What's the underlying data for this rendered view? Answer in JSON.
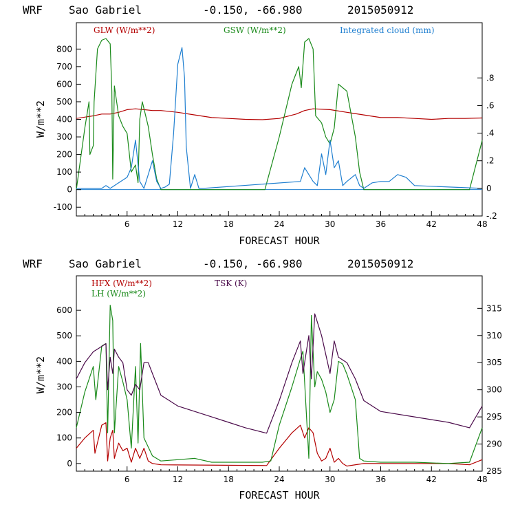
{
  "chart_data": [
    {
      "type": "line",
      "title": {
        "model": "WRF",
        "station": "Sao Gabriel",
        "coords": "-0.150, -66.980",
        "init": "2015050912"
      },
      "xlabel": "FORECAST HOUR",
      "ylabel": "W/m**2",
      "xlim": [
        0,
        48
      ],
      "xticks": [
        "6",
        "12",
        "18",
        "24",
        "30",
        "36",
        "42",
        "48"
      ],
      "xtick_values": [
        6,
        12,
        18,
        24,
        30,
        36,
        42,
        48
      ],
      "ylim": [
        -150,
        950
      ],
      "yticks": [
        "-100",
        "0",
        "100",
        "200",
        "300",
        "400",
        "500",
        "600",
        "700",
        "800"
      ],
      "ytick_values": [
        -100,
        0,
        100,
        200,
        300,
        400,
        500,
        600,
        700,
        800
      ],
      "y2lim": [
        -0.2,
        1.2
      ],
      "y2ticks": [
        "-.2",
        "0",
        ".2",
        ".4",
        ".6",
        ".8"
      ],
      "y2tick_values": [
        -0.2,
        0,
        0.2,
        0.4,
        0.6,
        0.8
      ],
      "series": [
        {
          "name": "GLW (W/m**2)",
          "color": "#b40000",
          "axis": "left",
          "x": [
            0,
            2,
            3,
            4,
            5,
            6,
            7,
            8,
            9,
            10,
            12,
            14,
            16,
            18,
            20,
            22,
            24,
            26,
            27,
            28,
            30,
            32,
            34,
            36,
            38,
            40,
            42,
            44,
            46,
            48
          ],
          "y": [
            405,
            420,
            430,
            430,
            440,
            455,
            460,
            455,
            450,
            450,
            440,
            425,
            410,
            405,
            400,
            398,
            405,
            430,
            450,
            460,
            455,
            440,
            425,
            410,
            410,
            405,
            400,
            405,
            405,
            408
          ]
        },
        {
          "name": "GSW (W/m**2)",
          "color": "#1a8a1a",
          "axis": "left",
          "x": [
            0,
            1.0,
            1.5,
            1.6,
            2.0,
            2.1,
            2.5,
            3.0,
            3.5,
            4.0,
            4.2,
            4.3,
            4.5,
            5.0,
            5.5,
            6.0,
            6.5,
            7.0,
            7.3,
            7.5,
            7.8,
            8.5,
            9.0,
            9.5,
            10.0,
            22.3,
            24.0,
            25.5,
            26.3,
            26.6,
            27.0,
            27.5,
            28.0,
            28.3,
            29.0,
            29.5,
            30.0,
            30.5,
            31.0,
            31.5,
            32.0,
            33.0,
            33.5,
            34.0,
            46.5,
            48.0
          ],
          "y": [
            0,
            350,
            500,
            200,
            250,
            500,
            800,
            850,
            860,
            830,
            560,
            60,
            590,
            420,
            360,
            320,
            100,
            140,
            40,
            400,
            500,
            360,
            200,
            60,
            0,
            0,
            300,
            600,
            700,
            580,
            840,
            860,
            800,
            420,
            380,
            300,
            260,
            350,
            600,
            580,
            560,
            300,
            100,
            0,
            0,
            280
          ]
        },
        {
          "name": "Integrated cloud (mm)",
          "color": "#1f7fd0",
          "axis": "right",
          "x": [
            0,
            3.0,
            3.5,
            4.0,
            5.0,
            6.0,
            6.5,
            7.0,
            7.5,
            8.0,
            8.5,
            9.0,
            9.5,
            10.0,
            10.5,
            11.0,
            11.5,
            12.0,
            12.5,
            12.8,
            13.0,
            13.5,
            14.0,
            14.5,
            15.0,
            26.5,
            27.0,
            27.5,
            28.0,
            28.5,
            29.0,
            29.5,
            30.0,
            30.5,
            31.0,
            31.5,
            32.0,
            33.0,
            33.5,
            34.0,
            35.0,
            36.0,
            37.0,
            38.0,
            39.0,
            40.0,
            48.0
          ],
          "y": [
            0,
            0,
            0.02,
            0,
            0.04,
            0.08,
            0.15,
            0.35,
            0.05,
            0,
            0.1,
            0.2,
            0.05,
            0,
            0.01,
            0.03,
            0.4,
            0.9,
            1.02,
            0.8,
            0.3,
            0,
            0.1,
            0,
            0,
            0.05,
            0.15,
            0.1,
            0.05,
            0.02,
            0.25,
            0.1,
            0.35,
            0.15,
            0.2,
            0.02,
            0.05,
            0.1,
            0.02,
            0,
            0.04,
            0.05,
            0.05,
            0.1,
            0.08,
            0.02,
            0
          ]
        }
      ]
    },
    {
      "type": "line",
      "title": {
        "model": "WRF",
        "station": "Sao Gabriel",
        "coords": "-0.150, -66.980",
        "init": "2015050912"
      },
      "xlabel": "FORECAST HOUR",
      "ylabel": "W/m**2",
      "xlim": [
        0,
        48
      ],
      "xticks": [
        "6",
        "12",
        "18",
        "24",
        "30",
        "36",
        "42",
        "48"
      ],
      "xtick_values": [
        6,
        12,
        18,
        24,
        30,
        36,
        42,
        48
      ],
      "ylim": [
        -30,
        735
      ],
      "yticks": [
        "0",
        "100",
        "200",
        "300",
        "400",
        "500",
        "600"
      ],
      "ytick_values": [
        0,
        100,
        200,
        300,
        400,
        500,
        600
      ],
      "y2lim": [
        285,
        321
      ],
      "y2ticks": [
        "285",
        "290",
        "295",
        "300",
        "305",
        "310",
        "315"
      ],
      "y2tick_values": [
        285,
        290,
        295,
        300,
        305,
        310,
        315
      ],
      "series": [
        {
          "name": "HFX (W/m**2)",
          "color": "#b40000",
          "axis": "left",
          "x": [
            0,
            1.0,
            2.0,
            2.2,
            3.0,
            3.5,
            3.7,
            4.0,
            4.3,
            4.5,
            5.0,
            5.5,
            6.0,
            6.5,
            7.0,
            7.5,
            8.0,
            8.5,
            9.0,
            10.0,
            22.5,
            24.0,
            25.5,
            26.5,
            27.0,
            27.5,
            28.0,
            28.5,
            29.0,
            29.5,
            30.0,
            30.5,
            31.0,
            31.5,
            32.0,
            34.0,
            36.0,
            38.0,
            40.0,
            42.0,
            44.0,
            46.5,
            48.0
          ],
          "y": [
            60,
            100,
            130,
            40,
            150,
            160,
            10,
            100,
            130,
            20,
            80,
            50,
            60,
            5,
            60,
            20,
            60,
            10,
            0,
            -5,
            -8,
            60,
            120,
            150,
            100,
            140,
            120,
            40,
            10,
            20,
            60,
            5,
            20,
            0,
            -10,
            0,
            0,
            0,
            0,
            0,
            0,
            -5,
            15
          ]
        },
        {
          "name": "LH (W/m**2)",
          "color": "#1a8a1a",
          "axis": "left",
          "x": [
            0,
            1.0,
            2.0,
            2.3,
            3.0,
            3.5,
            3.7,
            4.0,
            4.3,
            4.5,
            5.0,
            5.5,
            6.0,
            6.5,
            7.0,
            7.3,
            7.6,
            8.0,
            9.0,
            10.0,
            12.0,
            14.0,
            16.0,
            18.0,
            20.0,
            22.0,
            23.0,
            24.0,
            25.5,
            26.5,
            26.8,
            27.5,
            27.8,
            28.2,
            28.5,
            29.0,
            29.5,
            30.0,
            30.5,
            31.0,
            31.5,
            32.0,
            33.0,
            33.5,
            34.0,
            36.0,
            40.0,
            44.0,
            46.5,
            48.0
          ],
          "y": [
            140,
            280,
            380,
            250,
            460,
            470,
            120,
            620,
            560,
            120,
            380,
            320,
            250,
            60,
            380,
            80,
            470,
            100,
            30,
            10,
            15,
            20,
            5,
            5,
            5,
            5,
            10,
            150,
            300,
            410,
            440,
            20,
            580,
            300,
            360,
            330,
            280,
            200,
            250,
            400,
            390,
            350,
            250,
            20,
            10,
            5,
            5,
            0,
            5,
            140
          ]
        },
        {
          "name": "TSK (K)",
          "color": "#4a0a4a",
          "axis": "right",
          "x": [
            0,
            1.0,
            2.0,
            3.0,
            3.5,
            3.7,
            4.0,
            4.3,
            4.5,
            5.0,
            5.5,
            6.0,
            6.5,
            7.0,
            7.5,
            8.0,
            8.5,
            9.0,
            10.0,
            11.0,
            12.0,
            14.0,
            16.0,
            18.0,
            20.0,
            22.5,
            24.0,
            25.5,
            26.5,
            26.8,
            27.5,
            27.8,
            28.2,
            29.0,
            30.0,
            30.5,
            31.0,
            32.0,
            33.0,
            34.0,
            36.0,
            40.0,
            44.0,
            46.5,
            48.0
          ],
          "y": [
            302,
            305,
            307,
            308,
            308.5,
            300,
            306,
            303,
            307.5,
            306,
            305,
            300,
            299,
            301,
            300,
            305,
            305,
            303,
            299,
            298,
            297,
            296,
            295,
            294,
            293,
            292,
            298,
            305,
            309,
            303,
            310,
            302,
            314,
            310,
            303,
            309,
            306,
            305,
            302,
            298,
            296,
            295,
            294,
            293,
            297
          ]
        }
      ]
    }
  ]
}
